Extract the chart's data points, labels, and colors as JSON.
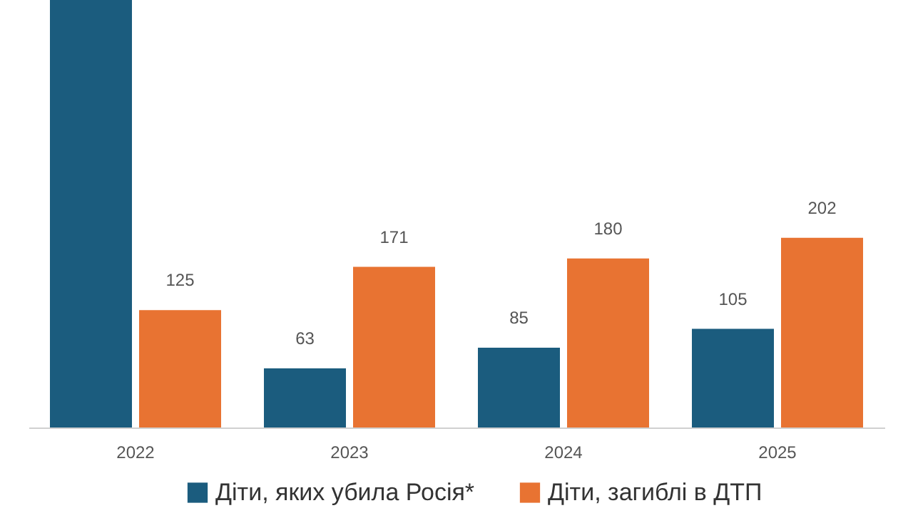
{
  "chart_data": {
    "type": "bar",
    "categories": [
      "2022",
      "2023",
      "2024",
      "2025"
    ],
    "series": [
      {
        "name": "Діти, яких убила Росія*",
        "color": "#1b5c7e",
        "values": [
          455,
          63,
          85,
          105
        ],
        "value_labels": [
          null,
          "63",
          "85",
          "105"
        ]
      },
      {
        "name": "Діти, загиблі в ДТП",
        "color": "#e87332",
        "values": [
          125,
          171,
          180,
          202
        ],
        "value_labels": [
          "125",
          "171",
          "180",
          "202"
        ]
      }
    ],
    "ylim": [
      0,
      455
    ],
    "grid": false,
    "legend": "bottom"
  }
}
